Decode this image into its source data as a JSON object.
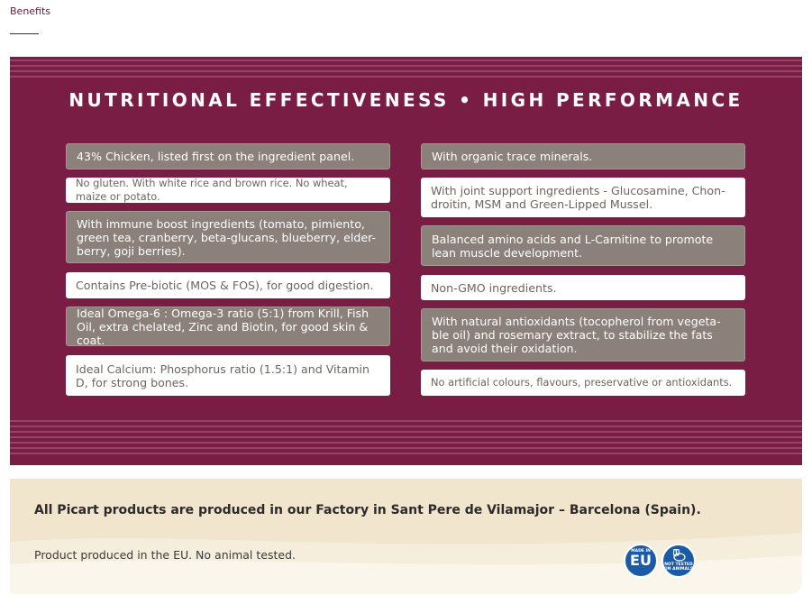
{
  "tab": {
    "label": "Benefits"
  },
  "banner": {
    "headline": "NUTRITIONAL EFFECTIVENESS • HIGH PERFORMANCE",
    "left": [
      {
        "text": "43% Chicken, listed first on the ingredient panel.",
        "style": "gray"
      },
      {
        "text": "No gluten. With white rice and brown rice. No wheat, maize or potato.",
        "style": "white"
      },
      {
        "text": "With immune boost ingredients (tomato, pimiento, green tea, cranberry, beta-glucans, blueberry, elder-berry, goji berries).",
        "style": "gray"
      },
      {
        "text": "Contains Pre-biotic (MOS & FOS), for good digestion.",
        "style": "white"
      },
      {
        "text": "Ideal Omega-6 : Omega-3 ratio (5:1) from Krill, Fish Oil, extra chelated, Zinc and Biotin, for good skin & coat.",
        "style": "gray"
      },
      {
        "text": "Ideal Calcium: Phosphorus ratio (1.5:1) and Vitamin D, for strong bones.",
        "style": "white"
      }
    ],
    "right": [
      {
        "text": "With organic trace minerals.",
        "style": "gray"
      },
      {
        "text": "With joint support ingredients - Glucosamine, Chon-droitin, MSM and Green-Lipped Mussel.",
        "style": "white"
      },
      {
        "text": "Balanced amino acids and L-Carnitine to promote lean muscle development.",
        "style": "gray"
      },
      {
        "text": "Non-GMO ingredients.",
        "style": "white"
      },
      {
        "text": "With natural antioxidants (tocopherol from vegeta-ble oil) and rosemary extract, to stabilize the fats and avoid their oxidation.",
        "style": "gray"
      },
      {
        "text": "No artificial colours, flavours, preservative or antioxidants.",
        "style": "white"
      }
    ]
  },
  "footer": {
    "factory": "All Picart products are produced in our Factory in Sant Pere de Vilamajor – Barcelona (Spain).",
    "eu_note": "Product produced in the EU. No animal tested.",
    "badge_eu_top": "MADE IN",
    "badge_eu_main": "EU",
    "badge_animals": "NOT TESTED ON ANIMALS"
  },
  "colors": {
    "banner": "#7a1d45",
    "gray_box": "#8c807a",
    "footer": "#f1e5cd",
    "badge": "#1d5aa6"
  }
}
